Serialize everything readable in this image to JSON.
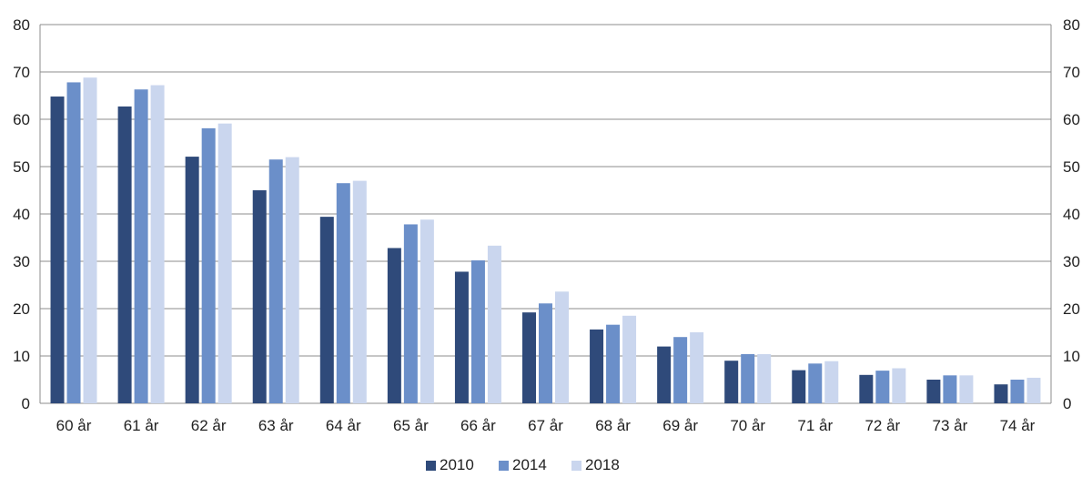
{
  "chart_data": {
    "type": "bar",
    "title": "",
    "xlabel": "",
    "ylabel": "",
    "ylim": [
      0,
      80
    ],
    "yticks": [
      0,
      10,
      20,
      30,
      40,
      50,
      60,
      70,
      80
    ],
    "secondary_yaxis": true,
    "grid": true,
    "legend_position": "bottom",
    "categories": [
      "60 år",
      "61 år",
      "62 år",
      "63 år",
      "64 år",
      "65 år",
      "66 år",
      "67 år",
      "68 år",
      "69 år",
      "70 år",
      "71 år",
      "72 år",
      "73 år",
      "74 år"
    ],
    "series": [
      {
        "name": "2010",
        "color": "#2f4a7a",
        "values": [
          64.8,
          62.7,
          52.1,
          45.0,
          39.4,
          32.8,
          27.8,
          19.2,
          15.6,
          12.0,
          9.0,
          7.0,
          6.0,
          5.0,
          4.0
        ]
      },
      {
        "name": "2014",
        "color": "#6b8fc9",
        "values": [
          67.8,
          66.3,
          58.1,
          51.5,
          46.5,
          37.8,
          30.2,
          21.1,
          16.6,
          14.0,
          10.4,
          8.4,
          6.9,
          5.9,
          5.0
        ]
      },
      {
        "name": "2018",
        "color": "#cad6ee",
        "values": [
          68.8,
          67.2,
          59.1,
          52.0,
          47.0,
          38.8,
          33.3,
          23.6,
          18.5,
          15.0,
          10.4,
          8.9,
          7.4,
          5.9,
          5.4
        ]
      }
    ]
  }
}
